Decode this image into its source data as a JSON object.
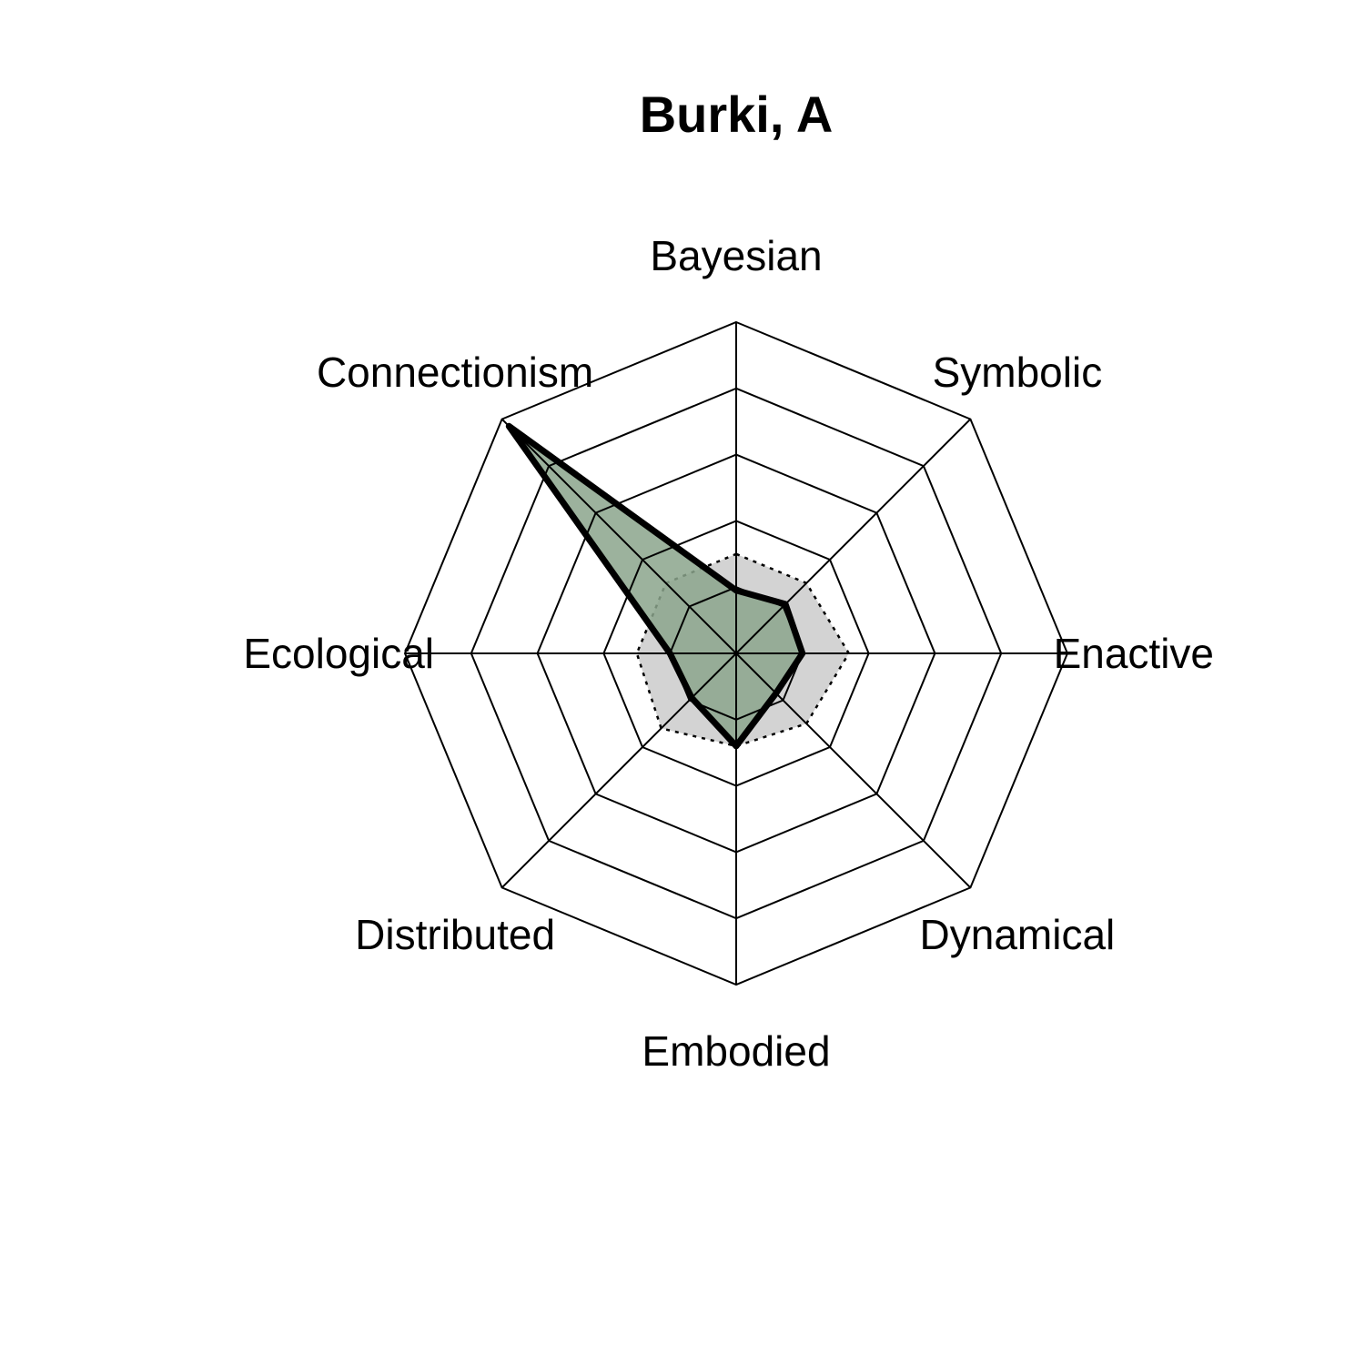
{
  "chart_data": {
    "type": "radar",
    "title": "Burki, A",
    "axes": [
      "Bayesian",
      "Symbolic",
      "Enactive",
      "Dynamical",
      "Embodied",
      "Distributed",
      "Ecological",
      "Connectionism"
    ],
    "rlim": [
      0,
      5
    ],
    "grid_levels": 5,
    "series": [
      {
        "values": [
          0.95,
          1.05,
          1.0,
          0.85,
          1.4,
          0.95,
          1.0,
          4.85
        ],
        "fill": "#8ba58c",
        "stroke": "#000000",
        "line": "solid"
      },
      {
        "values": [
          1.5,
          1.5,
          1.7,
          1.5,
          1.4,
          1.6,
          1.5,
          1.5
        ],
        "fill": "#d3d3d3",
        "stroke": "#000000",
        "line": "dotted"
      }
    ]
  }
}
